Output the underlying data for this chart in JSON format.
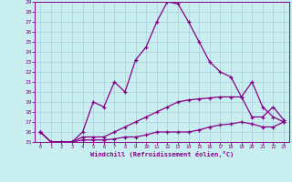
{
  "xlabel": "Windchill (Refroidissement éolien,°C)",
  "line_color": "#880088",
  "bg_color": "#c8eef0",
  "grid_color": "#aaccdd",
  "xlim": [
    -0.5,
    23.5
  ],
  "ylim": [
    15,
    29
  ],
  "xticks": [
    0,
    1,
    2,
    3,
    4,
    5,
    6,
    7,
    8,
    9,
    10,
    11,
    12,
    13,
    14,
    15,
    16,
    17,
    18,
    19,
    20,
    21,
    22,
    23
  ],
  "yticks": [
    15,
    16,
    17,
    18,
    19,
    20,
    21,
    22,
    23,
    24,
    25,
    26,
    27,
    28,
    29
  ],
  "line1_x": [
    0,
    1,
    2,
    3,
    4,
    5,
    6,
    7,
    8,
    9,
    10,
    11,
    12,
    13,
    14,
    15,
    16,
    17,
    18,
    19,
    20,
    21,
    22,
    23
  ],
  "line1_y": [
    16,
    15,
    15,
    15,
    16,
    19,
    18.5,
    21,
    20,
    23.2,
    24.5,
    27,
    29,
    28.8,
    27,
    25,
    23,
    22,
    21.5,
    19.5,
    21,
    18.5,
    17.5,
    17
  ],
  "line2_x": [
    0,
    1,
    2,
    3,
    4,
    5,
    6,
    7,
    8,
    9,
    10,
    11,
    12,
    13,
    14,
    15,
    16,
    17,
    18,
    19,
    20,
    21,
    22,
    23
  ],
  "line2_y": [
    16,
    15,
    15,
    15,
    15.5,
    15.5,
    15.5,
    16,
    16.5,
    17,
    17.5,
    18,
    18.5,
    19,
    19.2,
    19.3,
    19.4,
    19.5,
    19.5,
    19.5,
    17.5,
    17.5,
    18.5,
    17.2
  ],
  "line3_x": [
    0,
    1,
    2,
    3,
    4,
    5,
    6,
    7,
    8,
    9,
    10,
    11,
    12,
    13,
    14,
    15,
    16,
    17,
    18,
    19,
    20,
    21,
    22,
    23
  ],
  "line3_y": [
    16,
    15,
    15,
    15,
    15.2,
    15.2,
    15.2,
    15.3,
    15.5,
    15.5,
    15.7,
    16,
    16,
    16,
    16,
    16.2,
    16.5,
    16.7,
    16.8,
    17,
    16.8,
    16.5,
    16.5,
    17
  ]
}
